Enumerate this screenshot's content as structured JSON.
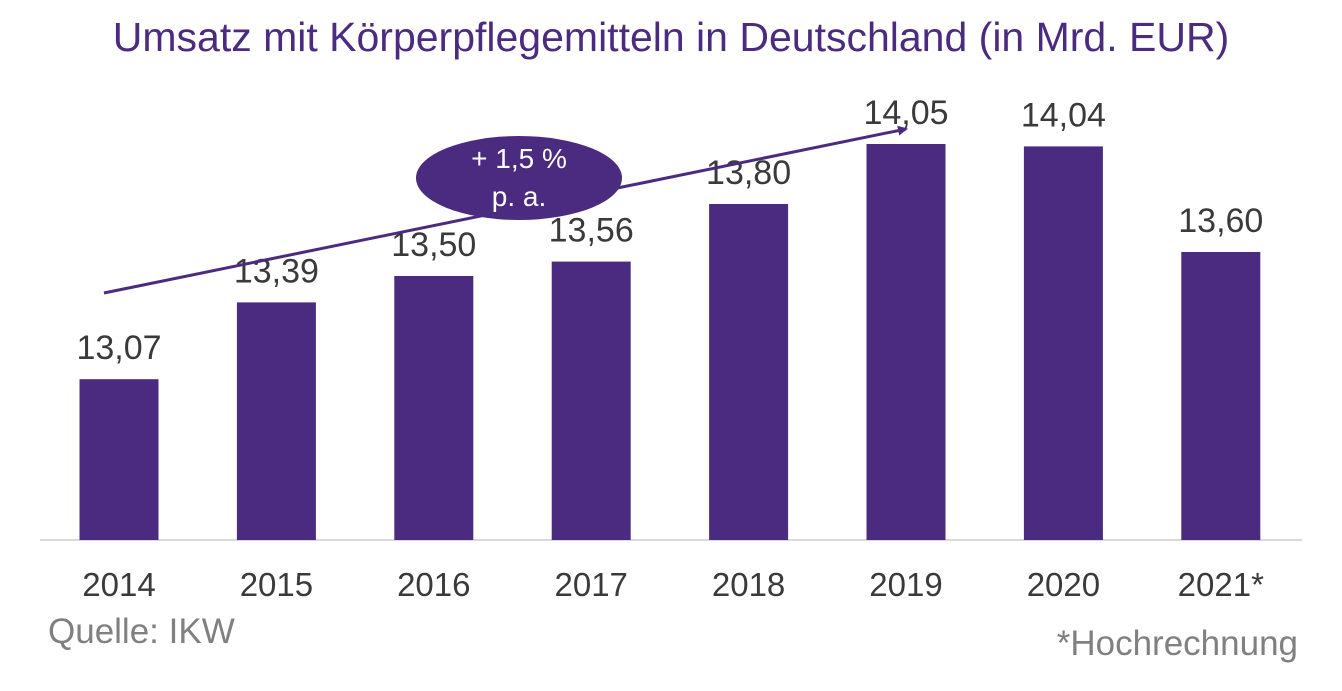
{
  "chart_data": {
    "type": "bar",
    "title": "Umsatz mit Körperpflegemitteln in Deutschland (in Mrd. EUR)",
    "categories": [
      "2014",
      "2015",
      "2016",
      "2017",
      "2018",
      "2019",
      "2020",
      "2021*"
    ],
    "values": [
      13.07,
      13.39,
      13.5,
      13.56,
      13.8,
      14.05,
      14.04,
      13.6
    ],
    "value_labels": [
      "13,07",
      "13,39",
      "13,50",
      "13,56",
      "13,80",
      "14,05",
      "14,04",
      "13,60"
    ],
    "ylim": [
      12.4,
      14.4
    ],
    "grid": false,
    "annotation": {
      "line1": "+ 1,5 %",
      "line2": "p. a."
    },
    "source": "Quelle: IKW",
    "footnote": "*Hochrechnung"
  },
  "colors": {
    "bar": "#4b2b7f",
    "title": "#4b2b7f",
    "label": "#3a3a3a",
    "muted": "#808080",
    "axis": "#d9d9d9"
  }
}
